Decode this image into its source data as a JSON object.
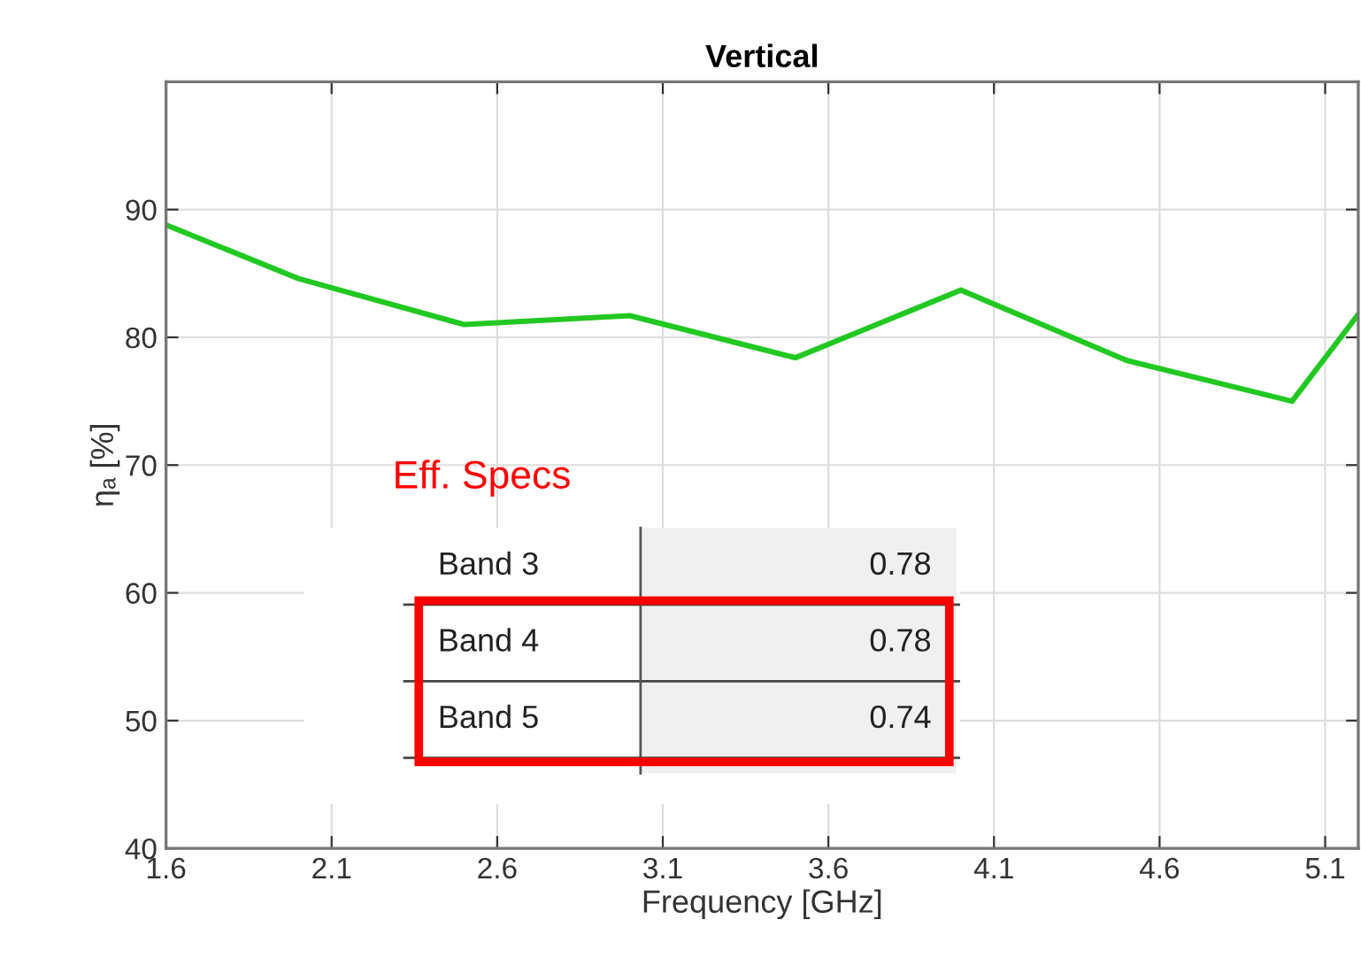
{
  "chart_data": {
    "type": "line",
    "title": "Vertical",
    "xlabel": "Frequency [GHz]",
    "ylabel": "ηₐ [%]",
    "x": [
      1.6,
      2.0,
      2.5,
      3.0,
      3.5,
      4.0,
      4.5,
      5.0,
      5.2
    ],
    "series": [
      {
        "color": "#22c822",
        "values": [
          88.8,
          84.6,
          81.0,
          81.7,
          78.4,
          83.7,
          78.2,
          75.0,
          81.8
        ]
      }
    ],
    "xlim": [
      1.6,
      5.2
    ],
    "xticks": [
      1.6,
      2.1,
      2.6,
      3.1,
      3.6,
      4.1,
      4.6,
      5.1
    ],
    "ylim": [
      40,
      100
    ],
    "yticks": [
      40,
      50,
      60,
      70,
      80,
      90
    ],
    "grid": true,
    "legend": false,
    "annotations": [
      "Eff. Specs",
      "Band 3",
      "0.78",
      "Band 4",
      "0.78",
      "Band 5",
      "0.74"
    ]
  }
}
